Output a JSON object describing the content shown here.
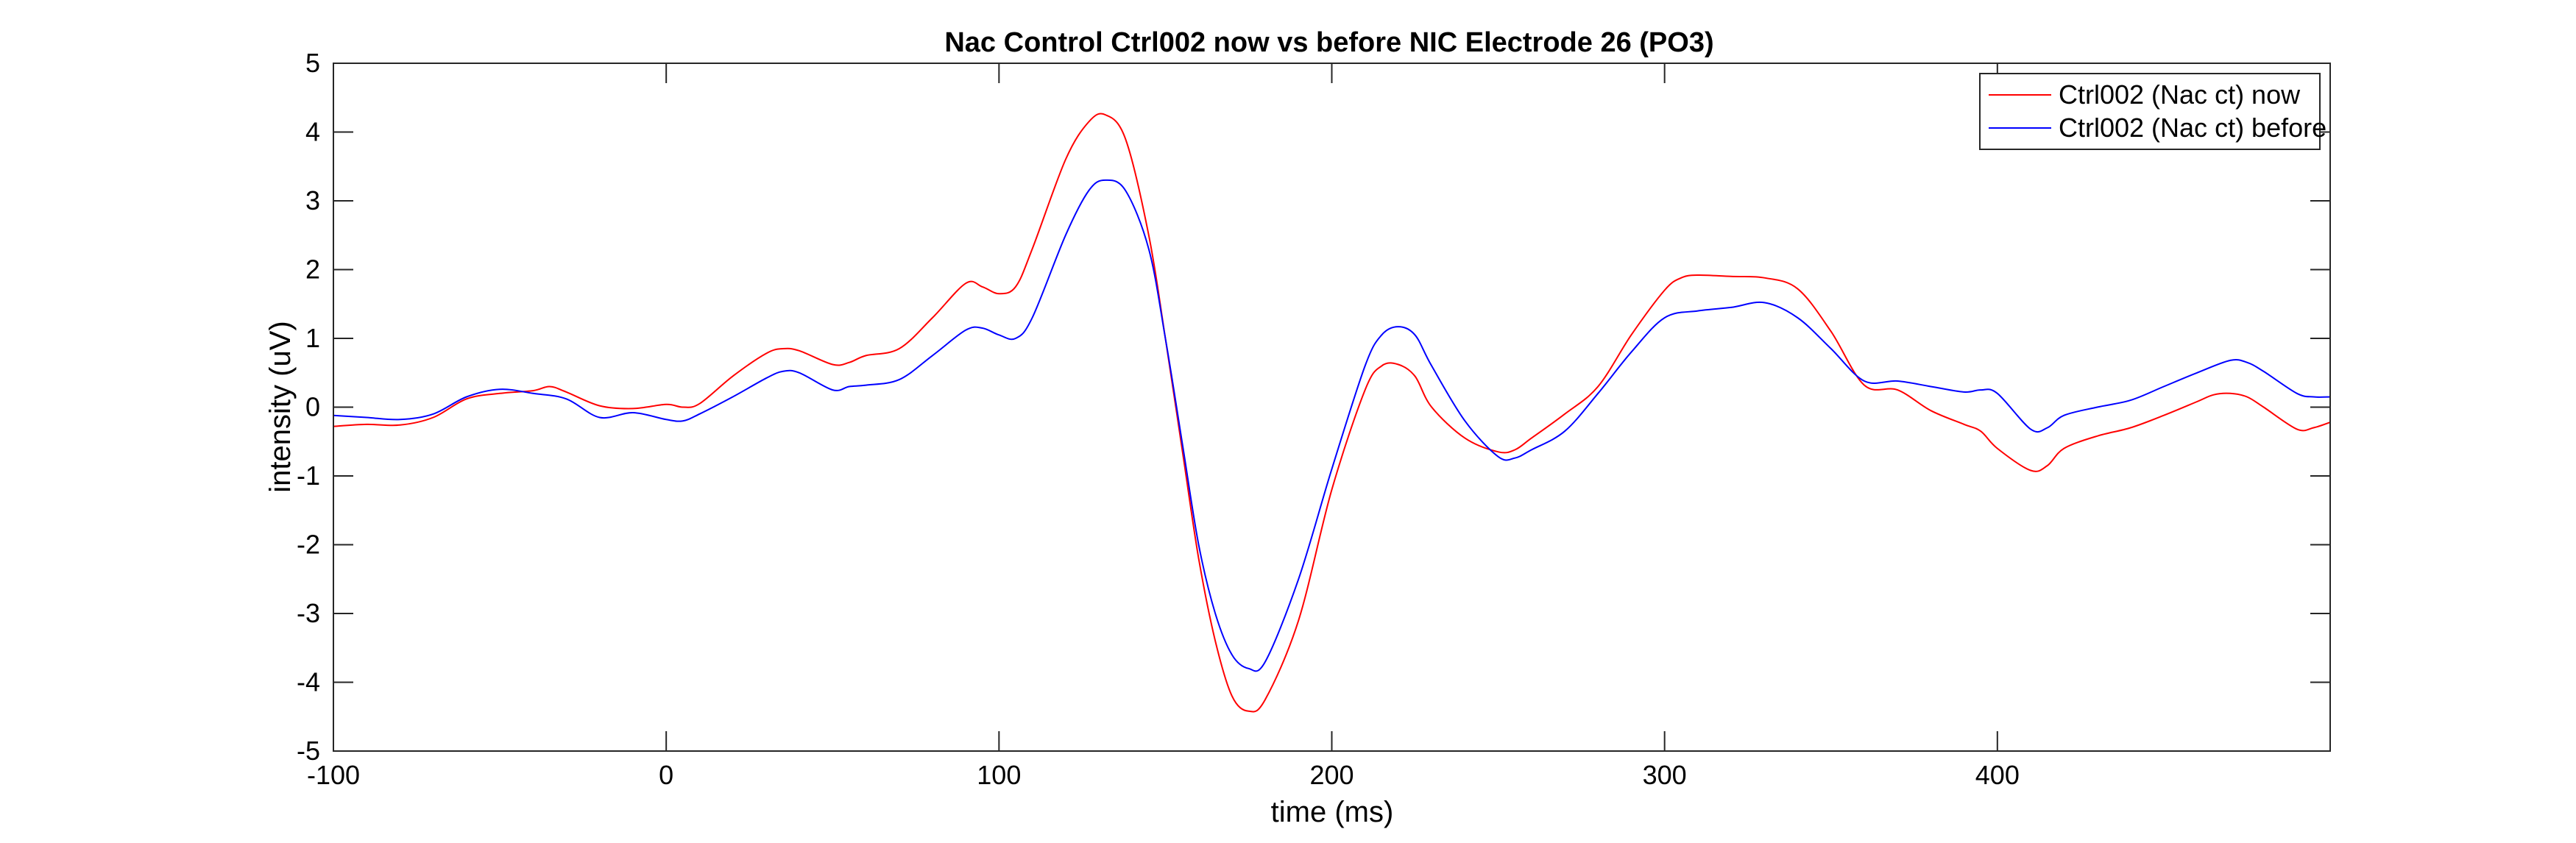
{
  "chart_data": {
    "type": "line",
    "title": "Nac Control Ctrl002 now vs before NIC Electrode 26 (PO3)",
    "xlabel": "time (ms)",
    "ylabel": "intensity (uV)",
    "xlim": [
      -100,
      500
    ],
    "ylim": [
      -5,
      5
    ],
    "xticks": [
      -100,
      0,
      100,
      200,
      300,
      400
    ],
    "yticks": [
      -5,
      -4,
      -3,
      -2,
      -1,
      0,
      1,
      2,
      3,
      4,
      5
    ],
    "grid": false,
    "legend_position": "top-right",
    "series": [
      {
        "name": "Ctrl002 (Nac ct) now",
        "color": "#ff0000",
        "points": [
          [
            -100,
            -0.28
          ],
          [
            -90,
            -0.25
          ],
          [
            -80,
            -0.26
          ],
          [
            -70,
            -0.15
          ],
          [
            -60,
            0.12
          ],
          [
            -50,
            0.2
          ],
          [
            -40,
            0.24
          ],
          [
            -35,
            0.3
          ],
          [
            -30,
            0.22
          ],
          [
            -20,
            0.02
          ],
          [
            -10,
            -0.02
          ],
          [
            0,
            0.04
          ],
          [
            5,
            0.0
          ],
          [
            10,
            0.05
          ],
          [
            20,
            0.45
          ],
          [
            30,
            0.78
          ],
          [
            35,
            0.85
          ],
          [
            40,
            0.82
          ],
          [
            50,
            0.62
          ],
          [
            55,
            0.65
          ],
          [
            60,
            0.75
          ],
          [
            70,
            0.85
          ],
          [
            80,
            1.3
          ],
          [
            90,
            1.8
          ],
          [
            95,
            1.75
          ],
          [
            100,
            1.65
          ],
          [
            105,
            1.75
          ],
          [
            110,
            2.3
          ],
          [
            120,
            3.6
          ],
          [
            127,
            4.15
          ],
          [
            132,
            4.25
          ],
          [
            138,
            3.9
          ],
          [
            145,
            2.5
          ],
          [
            150,
            1.0
          ],
          [
            155,
            -0.6
          ],
          [
            160,
            -2.2
          ],
          [
            165,
            -3.4
          ],
          [
            170,
            -4.2
          ],
          [
            175,
            -4.42
          ],
          [
            180,
            -4.25
          ],
          [
            190,
            -3.1
          ],
          [
            200,
            -1.2
          ],
          [
            210,
            0.25
          ],
          [
            215,
            0.6
          ],
          [
            220,
            0.62
          ],
          [
            225,
            0.45
          ],
          [
            230,
            0.0
          ],
          [
            240,
            -0.45
          ],
          [
            250,
            -0.65
          ],
          [
            255,
            -0.62
          ],
          [
            260,
            -0.45
          ],
          [
            270,
            -0.1
          ],
          [
            280,
            0.3
          ],
          [
            290,
            1.05
          ],
          [
            300,
            1.7
          ],
          [
            305,
            1.88
          ],
          [
            310,
            1.92
          ],
          [
            320,
            1.9
          ],
          [
            330,
            1.88
          ],
          [
            340,
            1.72
          ],
          [
            350,
            1.1
          ],
          [
            360,
            0.32
          ],
          [
            370,
            0.25
          ],
          [
            380,
            -0.05
          ],
          [
            390,
            -0.25
          ],
          [
            395,
            -0.35
          ],
          [
            400,
            -0.6
          ],
          [
            410,
            -0.92
          ],
          [
            415,
            -0.85
          ],
          [
            420,
            -0.6
          ],
          [
            430,
            -0.42
          ],
          [
            440,
            -0.3
          ],
          [
            450,
            -0.12
          ],
          [
            460,
            0.08
          ],
          [
            465,
            0.18
          ],
          [
            470,
            0.2
          ],
          [
            475,
            0.15
          ],
          [
            480,
            0.0
          ],
          [
            490,
            -0.32
          ],
          [
            495,
            -0.3
          ],
          [
            500,
            -0.22
          ]
        ]
      },
      {
        "name": "Ctrl002 (Nac ct) before",
        "color": "#0000ff",
        "points": [
          [
            -100,
            -0.12
          ],
          [
            -90,
            -0.15
          ],
          [
            -80,
            -0.18
          ],
          [
            -70,
            -0.1
          ],
          [
            -60,
            0.15
          ],
          [
            -50,
            0.26
          ],
          [
            -40,
            0.2
          ],
          [
            -30,
            0.12
          ],
          [
            -20,
            -0.15
          ],
          [
            -10,
            -0.08
          ],
          [
            0,
            -0.18
          ],
          [
            5,
            -0.2
          ],
          [
            10,
            -0.1
          ],
          [
            20,
            0.15
          ],
          [
            30,
            0.42
          ],
          [
            35,
            0.52
          ],
          [
            40,
            0.5
          ],
          [
            50,
            0.25
          ],
          [
            55,
            0.3
          ],
          [
            60,
            0.32
          ],
          [
            70,
            0.4
          ],
          [
            80,
            0.75
          ],
          [
            90,
            1.12
          ],
          [
            95,
            1.15
          ],
          [
            100,
            1.05
          ],
          [
            105,
            1.0
          ],
          [
            110,
            1.3
          ],
          [
            120,
            2.5
          ],
          [
            127,
            3.15
          ],
          [
            132,
            3.3
          ],
          [
            138,
            3.15
          ],
          [
            145,
            2.3
          ],
          [
            150,
            1.0
          ],
          [
            155,
            -0.5
          ],
          [
            160,
            -2.0
          ],
          [
            165,
            -3.0
          ],
          [
            170,
            -3.6
          ],
          [
            175,
            -3.8
          ],
          [
            180,
            -3.7
          ],
          [
            190,
            -2.5
          ],
          [
            200,
            -0.9
          ],
          [
            210,
            0.6
          ],
          [
            215,
            1.05
          ],
          [
            220,
            1.17
          ],
          [
            225,
            1.05
          ],
          [
            230,
            0.6
          ],
          [
            240,
            -0.2
          ],
          [
            250,
            -0.72
          ],
          [
            255,
            -0.74
          ],
          [
            260,
            -0.62
          ],
          [
            270,
            -0.35
          ],
          [
            280,
            0.2
          ],
          [
            290,
            0.8
          ],
          [
            300,
            1.3
          ],
          [
            310,
            1.4
          ],
          [
            320,
            1.45
          ],
          [
            330,
            1.52
          ],
          [
            340,
            1.3
          ],
          [
            350,
            0.85
          ],
          [
            360,
            0.38
          ],
          [
            370,
            0.38
          ],
          [
            380,
            0.3
          ],
          [
            390,
            0.22
          ],
          [
            395,
            0.25
          ],
          [
            400,
            0.2
          ],
          [
            410,
            -0.32
          ],
          [
            415,
            -0.3
          ],
          [
            420,
            -0.12
          ],
          [
            430,
            0.0
          ],
          [
            440,
            0.1
          ],
          [
            450,
            0.3
          ],
          [
            460,
            0.5
          ],
          [
            470,
            0.68
          ],
          [
            475,
            0.65
          ],
          [
            480,
            0.52
          ],
          [
            490,
            0.2
          ],
          [
            495,
            0.15
          ],
          [
            500,
            0.15
          ]
        ]
      }
    ]
  }
}
